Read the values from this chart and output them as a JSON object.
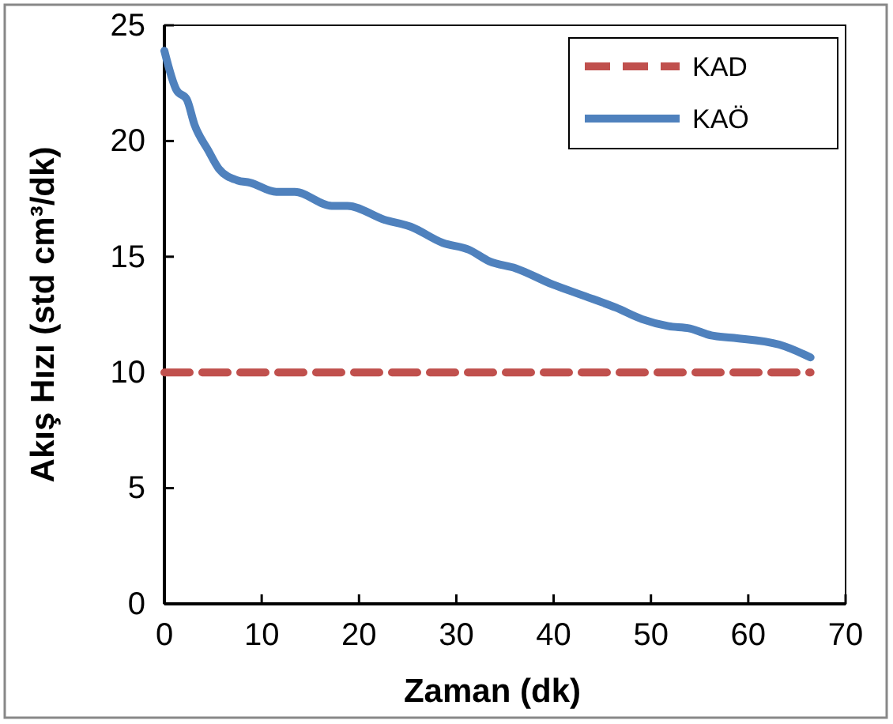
{
  "chart_data": {
    "type": "line",
    "xlabel": "Zaman (dk)",
    "ylabel": "Akış Hızı (std cm³/dk)",
    "xlim": [
      0,
      70
    ],
    "xticks": [
      0,
      10,
      20,
      30,
      40,
      50,
      60,
      70
    ],
    "ylim": [
      0,
      25
    ],
    "yticks": [
      0,
      5,
      10,
      15,
      20,
      25
    ],
    "grid": false,
    "legend": "top right",
    "marker": "none",
    "series": [
      {
        "name": "KAD",
        "color": "#c0504d",
        "line_style": "dashed",
        "x": [
          0,
          10,
          20,
          30,
          40,
          50,
          60,
          66.4
        ],
        "values": [
          10,
          10,
          10,
          10,
          10,
          10,
          10,
          10
        ]
      },
      {
        "name": "KAÖ",
        "color": "#4f81bd",
        "line_style": "solid",
        "x": [
          0,
          1.25,
          2.3,
          3.1,
          4.5,
          5.6,
          7.5,
          8.8,
          11.5,
          13.4,
          17.2,
          18.8,
          22.6,
          25.3,
          28.6,
          31.3,
          33.4,
          36.1,
          39.9,
          43.2,
          46.4,
          49.1,
          51.8,
          54,
          56.2,
          58.3,
          63.2,
          66.4
        ],
        "values": [
          23.9,
          22.2,
          21.8,
          20.7,
          19.6,
          18.8,
          18.3,
          18.2,
          17.8,
          17.8,
          17.2,
          17.2,
          16.6,
          16.3,
          15.6,
          15.3,
          14.8,
          14.5,
          13.8,
          13.3,
          12.8,
          12.3,
          12,
          11.9,
          11.6,
          11.5,
          11.2,
          10.65
        ]
      }
    ]
  }
}
